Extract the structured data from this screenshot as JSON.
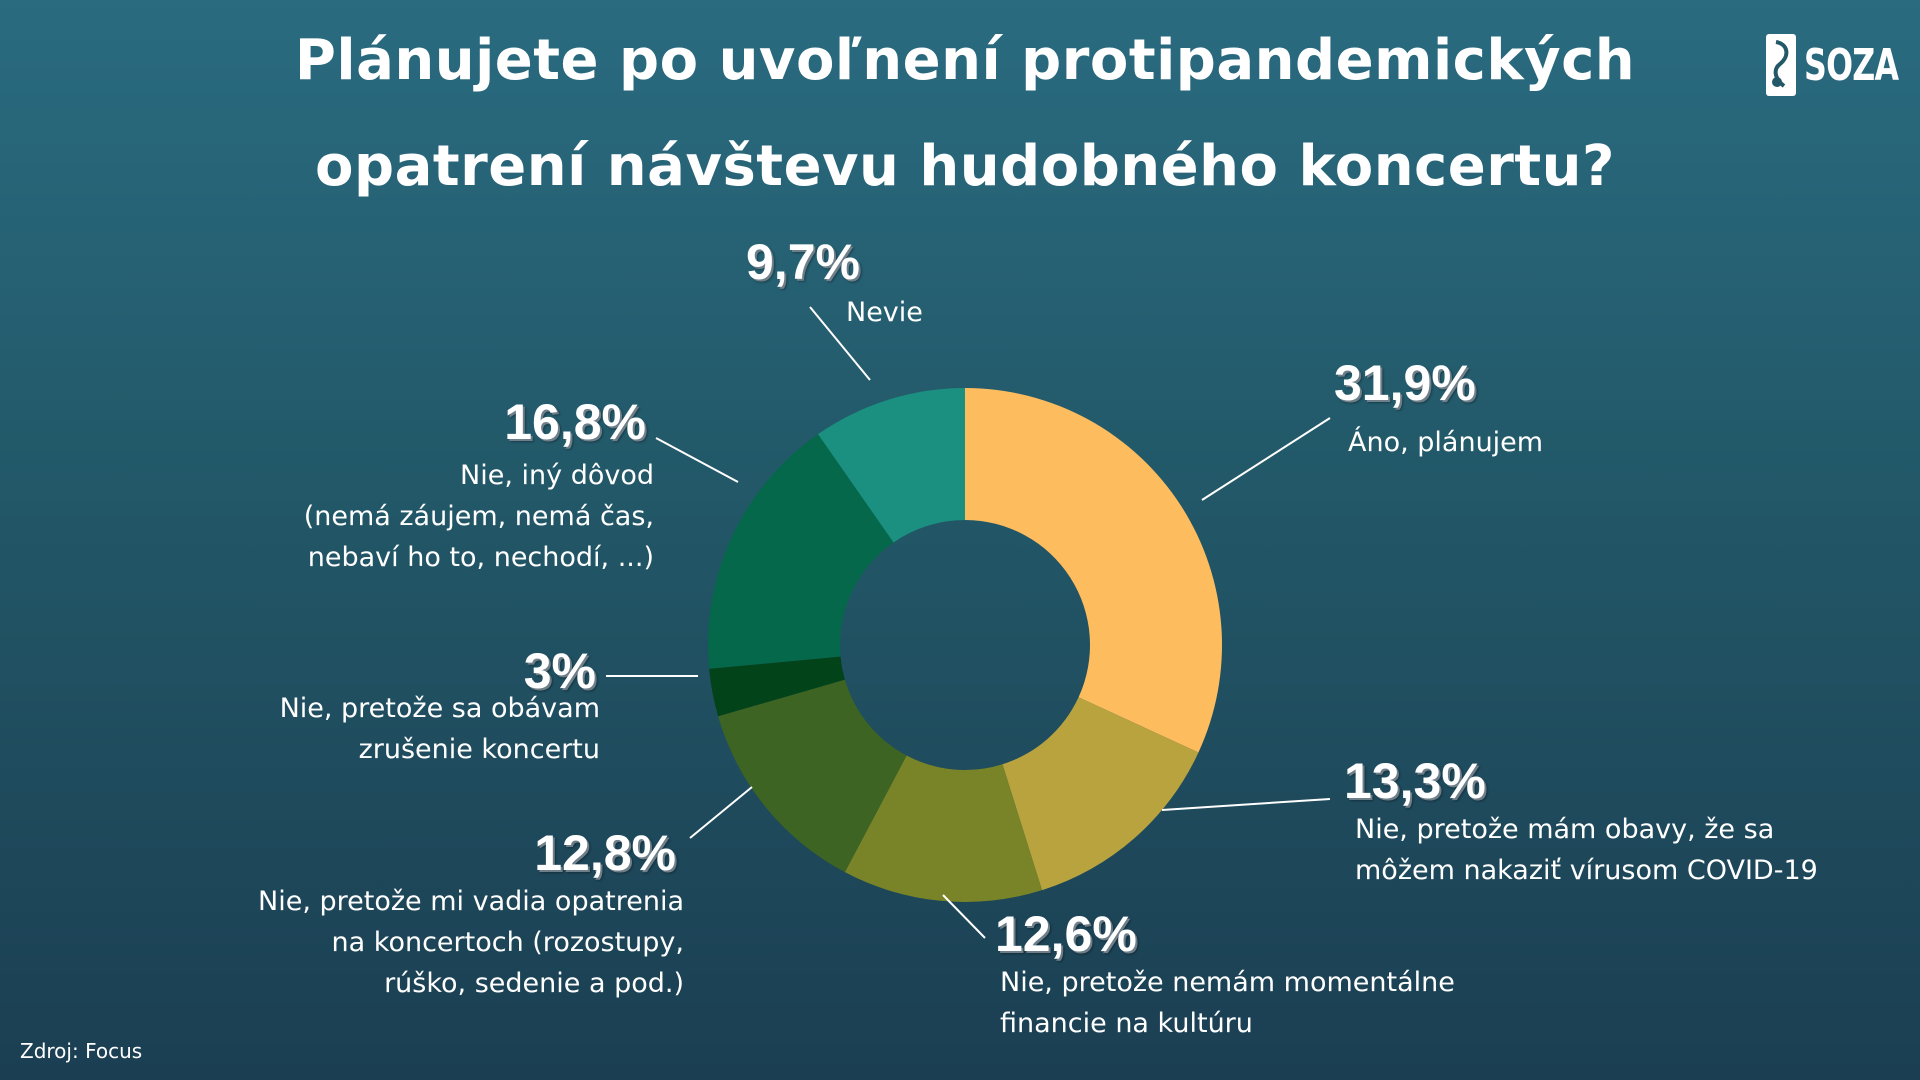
{
  "title": {
    "line1": "Plánujete po uvoľnení protipandemických",
    "line2": "opatrení návštevu hudobného koncertu?"
  },
  "logo": {
    "text": "SOZA",
    "icon": "soza-note-icon"
  },
  "source": "Zdroj: Focus",
  "chart_data": {
    "type": "pie",
    "donut": true,
    "slices": [
      {
        "pct_label": "31,9%",
        "value": 31.9,
        "label_lines": [
          "Áno, plánujem"
        ],
        "color": "#fdbc5e"
      },
      {
        "pct_label": "13,3%",
        "value": 13.3,
        "label_lines": [
          "Nie, pretože mám obavy, že sa",
          "môžem nakaziť vírusom COVID-19"
        ],
        "color": "#b8a33f"
      },
      {
        "pct_label": "12,6%",
        "value": 12.6,
        "label_lines": [
          "Nie, pretože nemám momentálne",
          "financie na kultúru"
        ],
        "color": "#788427"
      },
      {
        "pct_label": "12,8%",
        "value": 12.8,
        "label_lines": [
          "Nie, pretože mi vadia opatrenia",
          "na koncertoch (rozostupy,",
          "rúško, sedenie a pod.)"
        ],
        "color": "#3d6422"
      },
      {
        "pct_label": "3%",
        "value": 3.0,
        "label_lines": [
          "Nie, pretože sa obávam",
          "zrušenie koncertu"
        ],
        "color": "#034319"
      },
      {
        "pct_label": "16,8%",
        "value": 16.8,
        "label_lines": [
          "Nie, iný dôvod",
          "(nemá záujem, nemá čas,",
          "nebaví ho to, nechodí, ...)"
        ],
        "color": "#05684b"
      },
      {
        "pct_label": "9,7%",
        "value": 9.7,
        "label_lines": [
          "Nevie"
        ],
        "color": "#1b9080"
      }
    ]
  }
}
